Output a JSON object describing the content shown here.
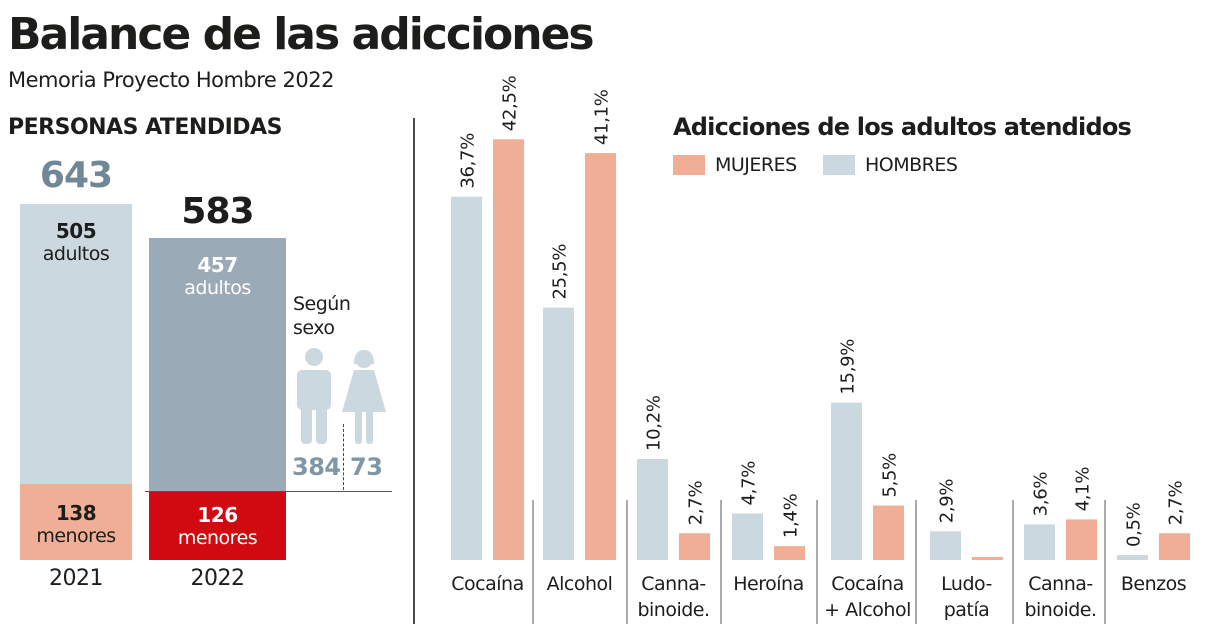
{
  "header": {
    "title": "Balance de las adicciones",
    "subtitle": "Memoria Proyecto Hombre 2022"
  },
  "personas": {
    "title": "PERSONAS ATENDIDAS",
    "years": [
      {
        "year": "2021",
        "total": "643",
        "adultos_value": "505",
        "adultos_label": "adultos",
        "menores_value": "138",
        "menores_label": "menores"
      },
      {
        "year": "2022",
        "total": "583",
        "adultos_value": "457",
        "adultos_label": "adultos",
        "menores_value": "126",
        "menores_label": "menores"
      }
    ],
    "sexo": {
      "label_line1": "Según",
      "label_line2": "sexo",
      "hombres": "384",
      "mujeres": "73",
      "hombre_icon": "male-person-icon",
      "mujer_icon": "female-person-icon"
    },
    "colors": {
      "total_2021": "#6f8796",
      "adultos_2021": "#ccd8df",
      "menores_2021": "#efae95",
      "adultos_2022": "#9aaab6",
      "menores_2022": "#d10a11",
      "sexo_icon": "#ccd8df",
      "sexo_num": "#7f96a6"
    }
  },
  "chart_data": {
    "type": "bar",
    "title": "Adicciones de los adultos atendidos",
    "xlabel": "",
    "ylabel": "",
    "ylim": [
      0,
      43
    ],
    "grid": false,
    "legend_position": "top-right",
    "unit": "%",
    "categories": [
      [
        "Cocaína"
      ],
      [
        "Alcohol"
      ],
      [
        "Canna-",
        "binoide."
      ],
      [
        "Heroína"
      ],
      [
        "Cocaína",
        "+ Alcohol"
      ],
      [
        "Ludo-",
        "patía"
      ],
      [
        "Canna-",
        "binoide."
      ],
      [
        "Benzos"
      ]
    ],
    "series": [
      {
        "name": "HOMBRES",
        "color": "#ccd8df",
        "values": [
          36.7,
          25.5,
          10.2,
          4.7,
          15.9,
          2.9,
          3.6,
          0.5
        ],
        "labels": [
          "36,7%",
          "25,5%",
          "10,2%",
          "4,7%",
          "15,9%",
          "2,9%",
          "3,6%",
          "0,5%"
        ]
      },
      {
        "name": "MUJERES",
        "color": "#efae95",
        "values": [
          42.5,
          41.1,
          2.7,
          1.4,
          5.5,
          0.2,
          4.1,
          2.7
        ],
        "labels": [
          "42,5%",
          "41,1%",
          "2,7%",
          "1,4%",
          "5,5%",
          "",
          "4,1%",
          "2,7%"
        ]
      }
    ],
    "legend": [
      {
        "name": "MUJERES",
        "color": "#efae95"
      },
      {
        "name": "HOMBRES",
        "color": "#ccd8df"
      }
    ]
  }
}
